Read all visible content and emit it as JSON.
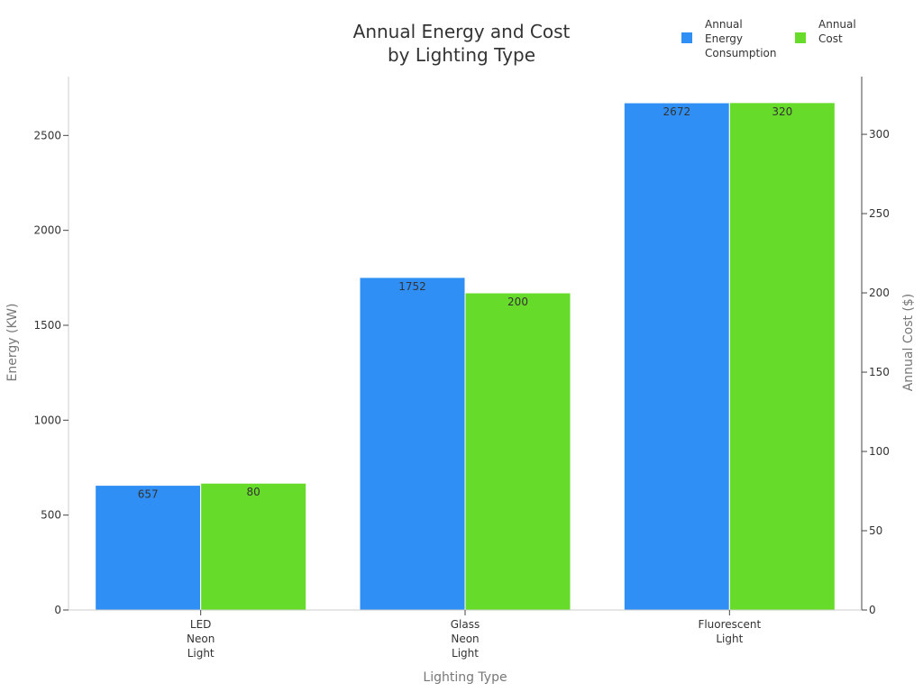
{
  "chart_data": {
    "type": "bar",
    "title": "Annual Energy and Cost by Lighting Type",
    "title_lines": [
      "Annual Energy and Cost",
      "by Lighting Type"
    ],
    "xlabel": "Lighting Type",
    "ylabel_left": "Energy (KW)",
    "ylabel_right": "Annual Cost ($)",
    "categories": [
      "LED Neon Light",
      "Glass Neon Light",
      "Fluorescent Light"
    ],
    "category_lines": [
      [
        "LED",
        "Neon",
        "Light"
      ],
      [
        "Glass",
        "Neon",
        "Light"
      ],
      [
        "Fluorescent",
        "Light"
      ]
    ],
    "series": [
      {
        "name": "Annual Energy Consumption",
        "name_lines": [
          "Annual",
          "Energy",
          "Consumption"
        ],
        "axis": "left",
        "color": "#2f8ff5",
        "values": [
          657,
          1752,
          2672
        ]
      },
      {
        "name": "Annual Cost",
        "name_lines": [
          "Annual",
          "Cost"
        ],
        "axis": "right",
        "color": "#66db29",
        "values": [
          80,
          200,
          320
        ]
      }
    ],
    "ylim_left": [
      0,
      2810
    ],
    "yticks_left": [
      0,
      500,
      1000,
      1500,
      2000,
      2500
    ],
    "ylim_right": [
      0,
      336.4
    ],
    "yticks_right": [
      0,
      50,
      100,
      150,
      200,
      250,
      300
    ],
    "grid": false,
    "legend_position": "top-right"
  }
}
